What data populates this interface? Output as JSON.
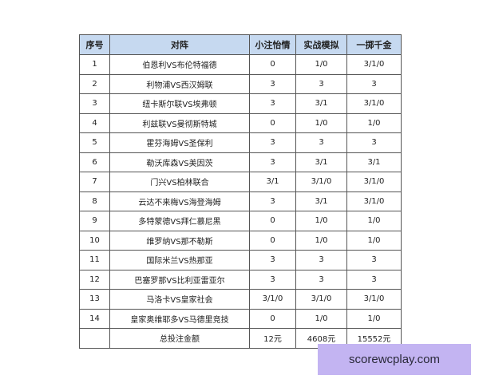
{
  "headers": [
    "序号",
    "对阵",
    "小注怡情",
    "实战模拟",
    "一掷千金"
  ],
  "rows": [
    [
      "1",
      "伯恩利VS布伦特福德",
      "0",
      "1/0",
      "3/1/0"
    ],
    [
      "2",
      "利物浦VS西汉姆联",
      "3",
      "3",
      "3"
    ],
    [
      "3",
      "纽卡斯尔联VS埃弗顿",
      "3",
      "3/1",
      "3/1/0"
    ],
    [
      "4",
      "利兹联VS曼彻斯特城",
      "0",
      "1/0",
      "1/0"
    ],
    [
      "5",
      "霍芬海姆VS圣保利",
      "3",
      "3",
      "3"
    ],
    [
      "6",
      "勒沃库森VS美因茨",
      "3",
      "3/1",
      "3/1"
    ],
    [
      "7",
      "门兴VS柏林联合",
      "3/1",
      "3/1/0",
      "3/1/0"
    ],
    [
      "8",
      "云达不来梅VS海登海姆",
      "3",
      "3/1",
      "3/1/0"
    ],
    [
      "9",
      "多特蒙德VS拜仁慕尼黑",
      "0",
      "1/0",
      "1/0"
    ],
    [
      "10",
      "维罗纳VS那不勒斯",
      "0",
      "1/0",
      "1/0"
    ],
    [
      "11",
      "国际米兰VS热那亚",
      "3",
      "3",
      "3"
    ],
    [
      "12",
      "巴塞罗那VS比利亚雷亚尔",
      "3",
      "3",
      "3"
    ],
    [
      "13",
      "马洛卡VS皇家社会",
      "3/1/0",
      "3/1/0",
      "3/1/0"
    ],
    [
      "14",
      "皇家奥维耶多VS马德里竞技",
      "0",
      "1/0",
      "1/0"
    ]
  ],
  "total": [
    "",
    "总投注金额",
    "12元",
    "4608元",
    "15552元"
  ],
  "watermark": "scorewcplay.com",
  "colors": {
    "header_bg": "#c6d9f0",
    "watermark_bg": "#c3b4f2"
  }
}
